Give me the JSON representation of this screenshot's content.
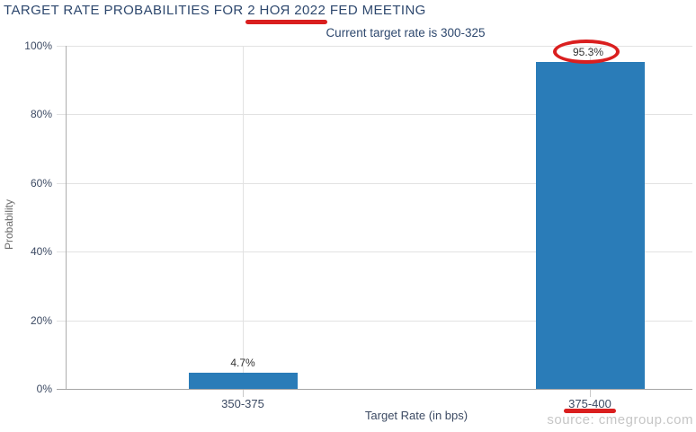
{
  "header": {
    "title_prefix": "TARGET RATE PROBABILITIES FOR ",
    "title_highlight": "2 НОЯ 2022",
    "title_suffix": " FED MEETING",
    "subtitle": "Current target rate is 300-325"
  },
  "chart_data": {
    "type": "bar",
    "title": "TARGET RATE PROBABILITIES FOR 2 НОЯ 2022 FED MEETING",
    "subtitle": "Current target rate is 300-325",
    "categories": [
      "350-375",
      "375-400"
    ],
    "values": [
      4.7,
      95.3
    ],
    "data_labels": [
      "4.7%",
      "95.3%"
    ],
    "xlabel": "Target Rate (in bps)",
    "ylabel": "Probability",
    "ylim": [
      0,
      100
    ],
    "ytick_labels": [
      "100%",
      "80%",
      "60%",
      "40%",
      "20%",
      "0%"
    ],
    "grid": true,
    "legend": false
  },
  "annotations": {
    "title_date_underlined": "2 НОЯ 2022",
    "circled_value": "95.3%",
    "underlined_category": "375-400"
  },
  "footer": {
    "source": "source: cmegroup.com"
  },
  "colors": {
    "bar": "#2a7cb8",
    "annotation_red": "#da1f1f",
    "title_text": "#2e486e",
    "axis_text": "#3c4a63",
    "gridline": "#e2e2e2",
    "source_text": "#c6c6c6"
  }
}
